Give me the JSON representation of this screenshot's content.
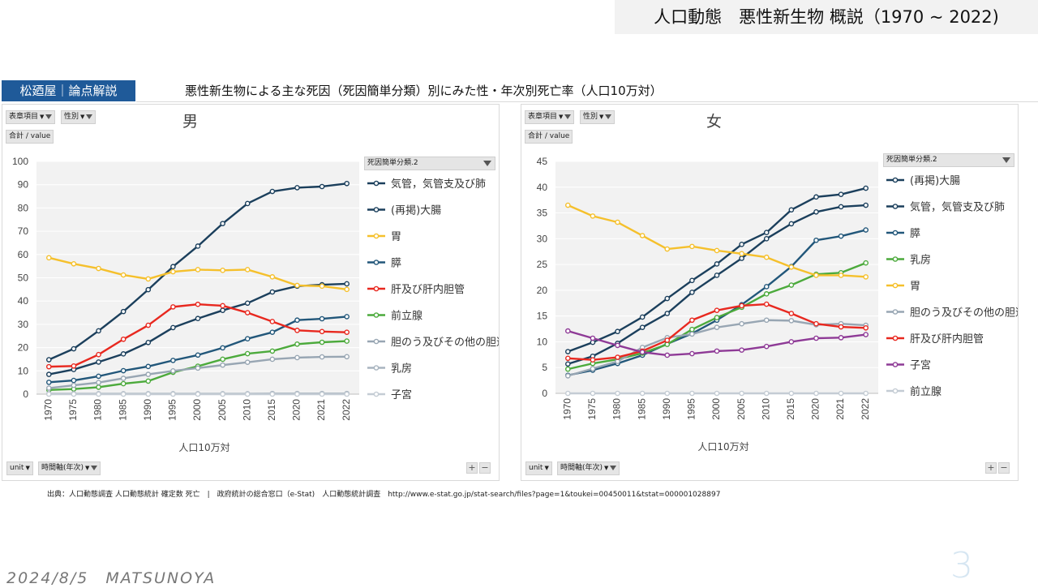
{
  "slide_title": "人口動態　悪性新生物 概説（1970 ~ 2022)",
  "brand": "松廼屋｜論点解説",
  "main_title": "悪性新生物による主な死因（死因簡単分類）別にみた性・年次別死亡率（人口10万対）",
  "pivot_buttons": {
    "table_item": "表章項目",
    "sex": "性別",
    "total_value": "合計 / value",
    "unit": "unit",
    "time_axis": "時間軸(年次)",
    "legend_field": "死因簡単分類.2",
    "plus": "+",
    "minus": "−"
  },
  "source": "出典：人口動態調査 人口動態統計 確定数 死亡　|　政府統計の総合窓口（e-Stat)　人口動態統計調査　http://www.e-stat.go.jp/stat-search/files?page=1&toukei=00450011&tstat=000001028897",
  "footer": {
    "date": "2024/8/5　MATSUNOYA",
    "page_number": "3"
  },
  "chart_data": [
    {
      "type": "line",
      "title": "男",
      "xlabel": "人口10万対",
      "ylabel": "",
      "categories": [
        "1970",
        "1975",
        "1980",
        "1985",
        "1990",
        "1995",
        "2000",
        "2005",
        "2010",
        "2015",
        "2020",
        "2021",
        "2022"
      ],
      "ylim": [
        0,
        100
      ],
      "yticks": [
        0,
        10,
        20,
        30,
        40,
        50,
        60,
        70,
        80,
        90,
        100
      ],
      "series": [
        {
          "name": "気管，気管支及び肺",
          "color": "#1b3f5c",
          "values": [
            14.8,
            19.5,
            27.2,
            35.5,
            44.9,
            54.8,
            63.6,
            73.3,
            81.9,
            87.1,
            88.7,
            89.2,
            90.5
          ]
        },
        {
          "name": "(再掲)大腸",
          "color": "#1b3f5c",
          "values": [
            8.5,
            10.6,
            13.8,
            17.3,
            22.2,
            28.6,
            32.5,
            36.0,
            39.1,
            43.9,
            46.4,
            47.0,
            47.4
          ]
        },
        {
          "name": "胃",
          "color": "#f5c02c",
          "values": [
            58.6,
            56.0,
            54.0,
            51.2,
            49.5,
            52.6,
            53.5,
            53.2,
            53.5,
            50.4,
            46.7,
            46.4,
            45.0
          ]
        },
        {
          "name": "膵",
          "color": "#22577a",
          "values": [
            5.1,
            5.9,
            7.7,
            10.1,
            11.9,
            14.5,
            16.8,
            19.9,
            23.8,
            26.6,
            31.8,
            32.4,
            33.3
          ]
        },
        {
          "name": "肝及び肝内胆管",
          "color": "#e8281f",
          "values": [
            11.8,
            12.1,
            17.0,
            23.6,
            29.6,
            37.5,
            38.6,
            38.0,
            35.0,
            31.2,
            27.4,
            26.9,
            26.6
          ]
        },
        {
          "name": "前立腺",
          "color": "#4caa3c",
          "values": [
            1.8,
            2.2,
            3.0,
            4.5,
            5.6,
            9.4,
            12.0,
            15.0,
            17.4,
            18.5,
            21.5,
            22.3,
            22.8
          ]
        },
        {
          "name": "胆のう及びその他の胆道",
          "color": "#98a6b3",
          "values": [
            2.6,
            3.8,
            5.0,
            6.8,
            8.5,
            10.0,
            11.2,
            12.5,
            13.7,
            15.0,
            15.7,
            16.0,
            16.1
          ]
        },
        {
          "name": "乳房",
          "color": "#a8b4bf",
          "values": [
            0.2,
            0.2,
            0.2,
            0.2,
            0.2,
            0.2,
            0.2,
            0.2,
            0.2,
            0.3,
            0.3,
            0.3,
            0.3
          ]
        },
        {
          "name": "子宮",
          "color": "#c4ccd4",
          "values": [
            0,
            0,
            0,
            0,
            0,
            0,
            0,
            0,
            0,
            0,
            0,
            0,
            0
          ]
        }
      ]
    },
    {
      "type": "line",
      "title": "女",
      "xlabel": "人口10万対",
      "ylabel": "",
      "categories": [
        "1970",
        "1975",
        "1980",
        "1985",
        "1990",
        "1995",
        "2000",
        "2005",
        "2010",
        "2015",
        "2020",
        "2021",
        "2022"
      ],
      "ylim": [
        0,
        45
      ],
      "yticks": [
        0,
        5,
        10,
        15,
        20,
        25,
        30,
        35,
        40,
        45
      ],
      "series": [
        {
          "name": "(再掲)大腸",
          "color": "#1b3f5c",
          "values": [
            8.1,
            9.9,
            12.0,
            14.8,
            18.4,
            21.9,
            25.1,
            28.9,
            31.2,
            35.6,
            38.1,
            38.6,
            39.8
          ]
        },
        {
          "name": "気管，気管支及び肺",
          "color": "#1b3f5c",
          "values": [
            5.7,
            7.2,
            9.7,
            12.8,
            15.5,
            19.6,
            22.9,
            26.2,
            30.0,
            32.9,
            35.2,
            36.2,
            36.5
          ]
        },
        {
          "name": "膵",
          "color": "#22577a",
          "values": [
            3.5,
            4.5,
            5.8,
            7.4,
            9.6,
            11.6,
            14.2,
            17.2,
            20.7,
            24.6,
            29.7,
            30.5,
            31.7
          ]
        },
        {
          "name": "乳房",
          "color": "#4caa3c",
          "values": [
            4.7,
            5.8,
            6.6,
            7.8,
            9.5,
            12.4,
            14.7,
            16.7,
            19.3,
            21.0,
            23.1,
            23.4,
            25.3
          ]
        },
        {
          "name": "胃",
          "color": "#f5c02c",
          "values": [
            36.5,
            34.4,
            33.2,
            30.6,
            28.0,
            28.5,
            27.7,
            27.1,
            26.4,
            24.5,
            22.9,
            22.9,
            22.6
          ]
        },
        {
          "name": "胆のう及びその他の胆道",
          "color": "#98a6b3",
          "values": [
            3.4,
            4.8,
            6.2,
            8.9,
            10.8,
            11.5,
            12.8,
            13.5,
            14.2,
            14.1,
            13.3,
            13.5,
            13.2
          ]
        },
        {
          "name": "肝及び肝内胆管",
          "color": "#e8281f",
          "values": [
            6.8,
            6.5,
            7.0,
            8.2,
            10.3,
            14.2,
            16.1,
            17.0,
            17.3,
            15.5,
            13.5,
            12.9,
            12.7
          ]
        },
        {
          "name": "子宮",
          "color": "#8e3a96",
          "values": [
            12.1,
            10.7,
            9.3,
            8.0,
            7.4,
            7.7,
            8.2,
            8.4,
            9.1,
            10.0,
            10.7,
            10.8,
            11.4
          ]
        },
        {
          "name": "前立腺",
          "color": "#c4ccd4",
          "values": [
            0,
            0,
            0,
            0,
            0,
            0,
            0,
            0,
            0,
            0,
            0,
            0,
            0
          ]
        }
      ]
    }
  ]
}
